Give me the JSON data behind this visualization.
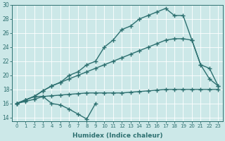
{
  "xlabel": "Humidex (Indice chaleur)",
  "background_color": "#cce8e8",
  "line_color": "#2d7070",
  "grid_color": "#aad0d0",
  "xlim": [
    -0.5,
    23.5
  ],
  "ylim": [
    13.5,
    30.0
  ],
  "xticks": [
    0,
    1,
    2,
    3,
    4,
    5,
    6,
    7,
    8,
    9,
    10,
    11,
    12,
    13,
    14,
    15,
    16,
    17,
    18,
    19,
    20,
    21,
    22,
    23
  ],
  "yticks": [
    14,
    16,
    18,
    20,
    22,
    24,
    26,
    28,
    30
  ],
  "series1_x": [
    0,
    1,
    2,
    3,
    4,
    5,
    6,
    7,
    8,
    9
  ],
  "series1_y": [
    16.0,
    16.5,
    17.0,
    17.0,
    16.0,
    15.8,
    15.2,
    14.5,
    13.8,
    16.0
  ],
  "series2_x": [
    0,
    1,
    2,
    3,
    4,
    5,
    6,
    7,
    8,
    9,
    10,
    11,
    12,
    13,
    14,
    15,
    16,
    17,
    18,
    19,
    20,
    21,
    22,
    23
  ],
  "series2_y": [
    16.0,
    16.3,
    16.6,
    17.0,
    17.1,
    17.2,
    17.3,
    17.4,
    17.5,
    17.5,
    17.5,
    17.5,
    17.5,
    17.6,
    17.7,
    17.8,
    17.9,
    18.0,
    18.0,
    18.0,
    18.0,
    18.0,
    18.0,
    18.0
  ],
  "series3_x": [
    0,
    1,
    2,
    3,
    4,
    5,
    6,
    7,
    8,
    9,
    10,
    11,
    12,
    13,
    14,
    15,
    16,
    17,
    18,
    19,
    20,
    21,
    22,
    23
  ],
  "series3_y": [
    16.0,
    16.5,
    17.0,
    17.8,
    18.5,
    19.0,
    19.5,
    20.0,
    20.5,
    21.0,
    21.5,
    22.0,
    22.5,
    23.0,
    23.5,
    24.0,
    24.5,
    25.0,
    25.2,
    25.2,
    25.0,
    21.5,
    21.0,
    18.5
  ],
  "series4_x": [
    0,
    1,
    2,
    3,
    4,
    5,
    6,
    7,
    8,
    9,
    10,
    11,
    12,
    13,
    14,
    15,
    16,
    17,
    18,
    19,
    20,
    21,
    22,
    23
  ],
  "series4_y": [
    16.0,
    16.5,
    17.0,
    17.8,
    18.5,
    19.0,
    20.0,
    20.5,
    21.5,
    22.0,
    24.0,
    25.0,
    26.5,
    27.0,
    28.0,
    28.5,
    29.0,
    29.5,
    28.5,
    28.5,
    25.0,
    21.5,
    19.5,
    18.5
  ]
}
